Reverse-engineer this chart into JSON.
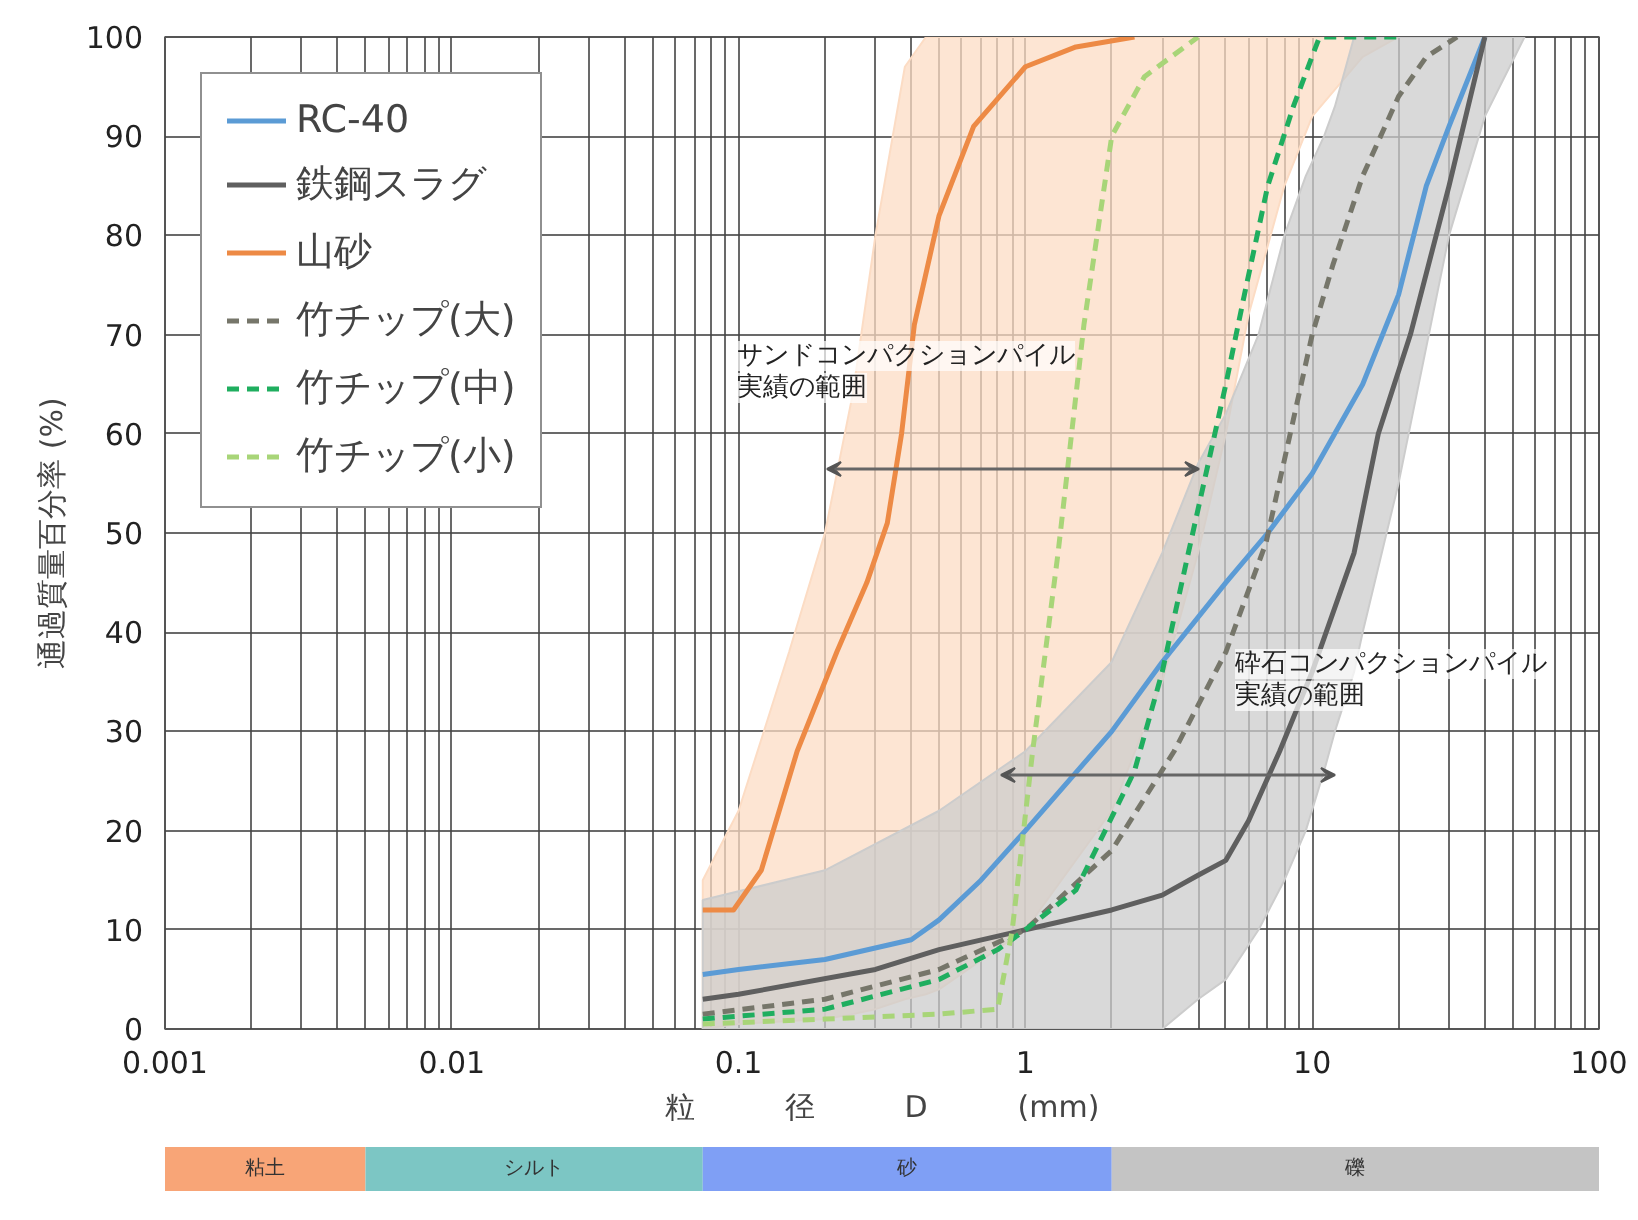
{
  "chart_data": [
    {
      "type": "line",
      "xlabel": "粒　　　径　　　D　　　(mm)",
      "ylabel": "通過質量百分率 (%)",
      "log": "x",
      "xlim": [
        0.001,
        100
      ],
      "ylim": [
        0,
        100
      ],
      "xticks": [
        0.001,
        0.01,
        0.1,
        1,
        10,
        100
      ],
      "yticks": [
        0,
        10,
        20,
        30,
        40,
        50,
        60,
        70,
        80,
        90,
        100
      ],
      "grid": true,
      "legend": "top left",
      "line_style": "solid",
      "marker": "none",
      "series": [
        {
          "type": "area",
          "color": "#fcdcc4",
          "x": [
            0.075,
            0.1,
            0.15,
            0.2,
            0.25,
            0.3,
            0.38,
            0.45,
            20,
            15,
            10,
            8,
            6,
            5,
            4,
            3,
            2,
            1,
            0.5,
            0.45,
            0.38,
            0.3,
            0.25,
            0.2,
            0.15,
            0.1,
            0.075
          ],
          "values": [
            15,
            22,
            38,
            50,
            64,
            80,
            97,
            100,
            100,
            98,
            92,
            85,
            72,
            60,
            48,
            35,
            22,
            10,
            4,
            3.5,
            3,
            2,
            1.5,
            1,
            0.8,
            0.5,
            0
          ]
        },
        {
          "type": "area",
          "color": "#cccccc",
          "x": [
            0.075,
            0.2,
            0.5,
            1,
            2,
            3,
            4,
            5,
            6.5,
            8,
            9.5,
            11,
            12,
            14,
            55,
            40,
            30,
            20,
            15,
            14,
            12,
            11,
            9.5,
            8,
            6.5,
            5,
            4,
            3,
            0.075
          ],
          "values": [
            13,
            16,
            22,
            28,
            37,
            48,
            57,
            62,
            70,
            80,
            86,
            90,
            93,
            100,
            100,
            92,
            80,
            55,
            40,
            36,
            30,
            26,
            20,
            15,
            10,
            5,
            3,
            0,
            0
          ]
        },
        {
          "name": "RC-40",
          "color": "#5b9bd5",
          "x": [
            0.075,
            0.1,
            0.2,
            0.4,
            0.5,
            0.7,
            1,
            2,
            3,
            5,
            7,
            10,
            15,
            20,
            25,
            30,
            40
          ],
          "values": [
            5.5,
            6,
            7,
            9,
            11,
            15,
            20,
            30,
            37,
            45,
            50,
            56,
            65,
            74,
            85,
            91,
            100
          ]
        },
        {
          "name": "鉄鋼スラグ",
          "color": "#5f5f5f",
          "x": [
            0.075,
            0.1,
            0.3,
            0.5,
            1,
            2,
            3,
            4,
            5,
            6,
            7.7,
            10,
            14,
            17,
            22,
            30,
            40
          ],
          "values": [
            3,
            3.5,
            6,
            8,
            10,
            12,
            13.5,
            15.5,
            17,
            21,
            28,
            36,
            48,
            60,
            70,
            85,
            100
          ]
        },
        {
          "name": "山砂",
          "color": "#ed8a45",
          "x": [
            0.075,
            0.096,
            0.12,
            0.16,
            0.22,
            0.28,
            0.33,
            0.37,
            0.41,
            0.5,
            0.66,
            1,
            1.5,
            2.4
          ],
          "values": [
            12,
            12,
            16,
            28,
            38,
            45,
            51,
            60,
            71,
            82,
            91,
            97,
            99,
            100
          ]
        },
        {
          "name": "竹チップ(大)",
          "color": "#76766a",
          "line_style": "dashed",
          "x": [
            0.075,
            0.2,
            0.5,
            1,
            2,
            3.3,
            5,
            6.9,
            10,
            11.8,
            15,
            20,
            25,
            32
          ],
          "values": [
            1.5,
            3,
            6,
            10,
            18,
            28,
            38,
            49,
            70,
            77,
            86,
            94,
            98,
            100
          ]
        },
        {
          "name": "竹チップ(中)",
          "color": "#1fae5f",
          "line_style": "dashed",
          "x": [
            0.075,
            0.2,
            0.5,
            0.8,
            1,
            1.5,
            2.4,
            3,
            3.7,
            5,
            5.8,
            7,
            8.6,
            10.6,
            20
          ],
          "values": [
            1,
            2,
            5,
            8,
            10,
            14,
            26,
            36,
            48,
            65,
            74,
            85,
            93,
            100,
            100
          ]
        },
        {
          "name": "竹チップ(小)",
          "color": "#a8d578",
          "line_style": "dashed",
          "x": [
            0.075,
            0.2,
            0.5,
            0.8,
            0.9,
            1.06,
            1.3,
            1.6,
            2,
            2.6,
            4
          ],
          "values": [
            0.5,
            1,
            1.5,
            2,
            10,
            28,
            48,
            71,
            90,
            96,
            100
          ]
        }
      ],
      "annotations": [
        "サンドコンパクションパイル",
        "実績の範囲",
        "砕石コンパクションパイル",
        "実績の範囲"
      ]
    },
    {
      "type": "bar",
      "orientation": "horizontal",
      "stacked": false,
      "log": "x",
      "xlim": [
        0.001,
        100
      ],
      "tick_labels": false,
      "categories": [
        null
      ],
      "series": [
        {
          "name": "粘土",
          "color": "#f8a577",
          "base": [
            0.001
          ],
          "values": [
            0.004
          ]
        },
        {
          "name": "シルト",
          "color": "#7cc6c4",
          "base": [
            0.005
          ],
          "values": [
            0.07
          ]
        },
        {
          "name": "砂",
          "color": "#7f9ff5",
          "base": [
            0.075
          ],
          "values": [
            1.925
          ]
        },
        {
          "name": "礫",
          "color": "#c4c4c4",
          "base": [
            2
          ],
          "values": [
            98
          ]
        }
      ]
    }
  ]
}
